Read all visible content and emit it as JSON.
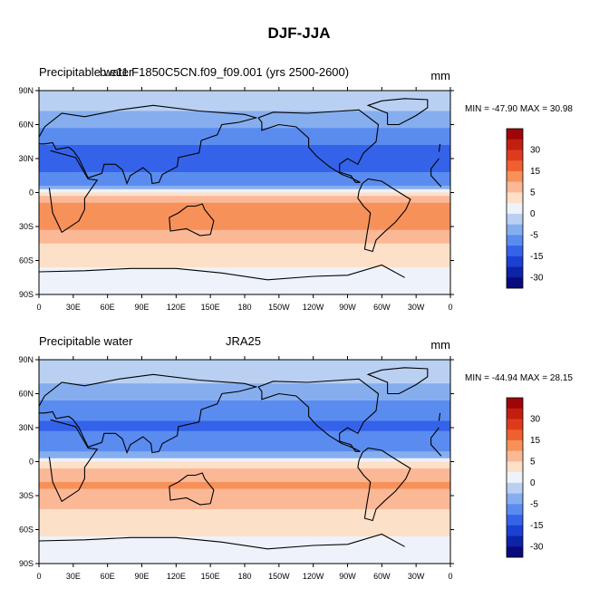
{
  "figure_title": "DJF-JJA",
  "chart_data": [
    {
      "type": "heatmap",
      "left_title": "Precipitable water",
      "center_title": "b.e11.F1850C5CN.f09_f09.001 (yrs 2500-2600)",
      "right_title": "mm",
      "stats": "MIN = -47.90 MAX =  30.98",
      "min": -47.9,
      "max": 30.98,
      "xlim": [
        0,
        360
      ],
      "ylim": [
        -90,
        90
      ],
      "x_ticks": [
        "0",
        "30E",
        "60E",
        "90E",
        "120E",
        "150E",
        "180",
        "150W",
        "120W",
        "90W",
        "60W",
        "30W",
        "0"
      ],
      "y_ticks": [
        "90N",
        "60N",
        "30N",
        "0",
        "30S",
        "60S",
        "90S"
      ],
      "colorbar_labels": [
        "30",
        "15",
        "5",
        "0",
        "-5",
        "-15",
        "-30"
      ],
      "colorbar_colors": [
        "#9e0508",
        "#c11f10",
        "#de3b1d",
        "#ee6030",
        "#f7915a",
        "#fbb897",
        "#fde0c8",
        "#eef2fb",
        "#b9d0f2",
        "#86aeef",
        "#5a8cf0",
        "#3463ea",
        "#1b40d2",
        "#0d23a8",
        "#0a0a7d"
      ],
      "zonal_mean_profile": {
        "lat": [
          80,
          60,
          45,
          30,
          15,
          5,
          0,
          -10,
          -20,
          -30,
          -45,
          -60,
          -80
        ],
        "value": [
          -5,
          -10,
          -16,
          -19,
          -16,
          -12,
          5,
          12,
          14,
          13,
          7,
          3,
          1
        ]
      }
    },
    {
      "type": "heatmap",
      "left_title": "Precipitable water",
      "center_title": "JRA25",
      "right_title": "mm",
      "stats": "MIN = -44.94 MAX =  28.15",
      "min": -44.94,
      "max": 28.15,
      "xlim": [
        0,
        360
      ],
      "ylim": [
        -90,
        90
      ],
      "x_ticks": [
        "0",
        "30E",
        "60E",
        "90E",
        "120E",
        "150E",
        "180",
        "150W",
        "120W",
        "90W",
        "60W",
        "30W",
        "0"
      ],
      "y_ticks": [
        "90N",
        "60N",
        "30N",
        "0",
        "30S",
        "60S",
        "90S"
      ],
      "colorbar_labels": [
        "30",
        "15",
        "5",
        "0",
        "-5",
        "-15",
        "-30"
      ],
      "colorbar_colors": [
        "#9e0508",
        "#c11f10",
        "#de3b1d",
        "#ee6030",
        "#f7915a",
        "#fbb897",
        "#fde0c8",
        "#eef2fb",
        "#b9d0f2",
        "#86aeef",
        "#5a8cf0",
        "#3463ea",
        "#1b40d2",
        "#0d23a8",
        "#0a0a7d"
      ],
      "zonal_mean_profile": {
        "lat": [
          80,
          60,
          45,
          30,
          15,
          5,
          0,
          -10,
          -20,
          -30,
          -45,
          -60,
          -80
        ],
        "value": [
          -4,
          -9,
          -15,
          -17,
          -14,
          -10,
          3,
          10,
          12,
          11,
          6,
          3,
          1
        ]
      }
    }
  ]
}
